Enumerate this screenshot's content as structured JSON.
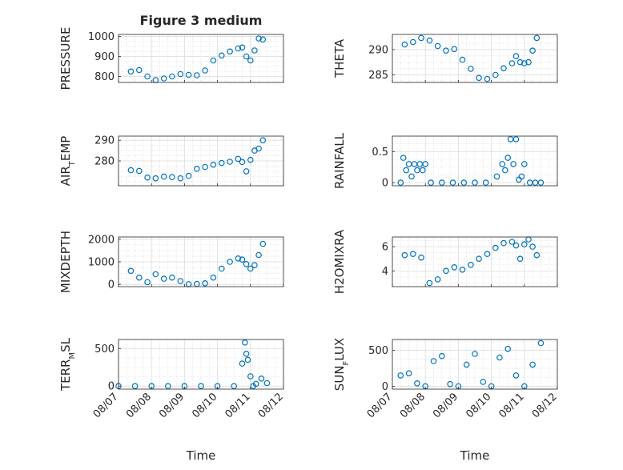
{
  "figure": {
    "title": "Figure 3 medium"
  },
  "chart_data": [
    {
      "type": "scatter",
      "ylabel": "PRESSURE",
      "xlabel": "",
      "ylim": [
        770,
        1010
      ],
      "yticks": [
        800,
        900,
        1000
      ],
      "grid": true,
      "x": [
        "08/07 09:00",
        "08/07 15:00",
        "08/07 21:00",
        "08/08 03:00",
        "08/08 09:00",
        "08/08 15:00",
        "08/08 21:00",
        "08/09 03:00",
        "08/09 09:00",
        "08/09 15:00",
        "08/09 21:00",
        "08/10 03:00",
        "08/10 09:00",
        "08/10 15:00",
        "08/10 18:00",
        "08/10 21:00",
        "08/11 00:00",
        "08/11 03:00",
        "08/11 06:00",
        "08/11 09:00"
      ],
      "y": [
        825,
        832,
        800,
        782,
        790,
        800,
        812,
        808,
        806,
        830,
        880,
        905,
        925,
        940,
        945,
        900,
        880,
        930,
        990,
        985
      ]
    },
    {
      "type": "scatter",
      "ylabel": "THETA",
      "xlabel": "",
      "ylim": [
        283.5,
        293
      ],
      "yticks": [
        285,
        290
      ],
      "grid": true,
      "x": [
        "08/07 09:00",
        "08/07 15:00",
        "08/07 21:00",
        "08/08 03:00",
        "08/08 09:00",
        "08/08 15:00",
        "08/08 21:00",
        "08/09 03:00",
        "08/09 09:00",
        "08/09 15:00",
        "08/09 21:00",
        "08/10 03:00",
        "08/10 09:00",
        "08/10 15:00",
        "08/10 18:00",
        "08/10 21:00",
        "08/11 00:00",
        "08/11 03:00",
        "08/11 06:00",
        "08/11 09:00"
      ],
      "y": [
        291,
        291.5,
        292.3,
        291.8,
        290.7,
        289.8,
        290.1,
        288.0,
        286.2,
        284.4,
        284.2,
        285.0,
        286.3,
        287.3,
        288.7,
        287.5,
        287.3,
        287.5,
        289.8,
        292.3
      ]
    },
    {
      "type": "scatter",
      "ylabel": "AIR_T_EMP",
      "xlabel": "",
      "ylim": [
        268,
        292
      ],
      "yticks": [
        280,
        290
      ],
      "grid": true,
      "x": [
        "08/07 09:00",
        "08/07 15:00",
        "08/07 21:00",
        "08/08 03:00",
        "08/08 09:00",
        "08/08 15:00",
        "08/08 21:00",
        "08/09 03:00",
        "08/09 09:00",
        "08/09 15:00",
        "08/09 21:00",
        "08/10 03:00",
        "08/10 09:00",
        "08/10 15:00",
        "08/10 18:00",
        "08/10 21:00",
        "08/11 00:00",
        "08/11 03:00",
        "08/11 06:00",
        "08/11 09:00"
      ],
      "y": [
        275.5,
        275.2,
        272,
        271.6,
        272.4,
        272.2,
        271.6,
        272.8,
        276.2,
        277.1,
        278.2,
        279.0,
        279.6,
        281.0,
        279.5,
        275.0,
        280.5,
        285.0,
        286.0,
        290.0
      ]
    },
    {
      "type": "scatter",
      "ylabel": "RAINFALL",
      "xlabel": "",
      "ylim": [
        -0.05,
        0.75
      ],
      "yticks": [
        0,
        0.5
      ],
      "grid": true,
      "x": [
        "08/07 06:00",
        "08/07 08:00",
        "08/07 10:00",
        "08/07 12:00",
        "08/07 14:00",
        "08/07 16:00",
        "08/07 18:00",
        "08/07 20:00",
        "08/07 22:00",
        "08/08 00:00",
        "08/08 04:00",
        "08/08 12:00",
        "08/08 20:00",
        "08/09 04:00",
        "08/09 12:00",
        "08/09 20:00",
        "08/10 04:00",
        "08/10 08:00",
        "08/10 10:00",
        "08/10 12:00",
        "08/10 14:00",
        "08/10 16:00",
        "08/10 18:00",
        "08/10 20:00",
        "08/10 22:00",
        "08/11 00:00",
        "08/11 04:00",
        "08/11 08:00",
        "08/11 12:00"
      ],
      "y": [
        0,
        0.4,
        0.2,
        0.3,
        0.1,
        0.3,
        0.2,
        0.3,
        0.2,
        0.3,
        0,
        0,
        0,
        0,
        0,
        0,
        0.1,
        0.3,
        0.2,
        0.4,
        0.7,
        0.3,
        0.7,
        0.05,
        0.1,
        0.3,
        0,
        0,
        0
      ]
    },
    {
      "type": "scatter",
      "ylabel": "MIXDEPTH",
      "xlabel": "",
      "ylim": [
        -100,
        2100
      ],
      "yticks": [
        0,
        1000,
        2000
      ],
      "grid": true,
      "x": [
        "08/07 09:00",
        "08/07 15:00",
        "08/07 21:00",
        "08/08 03:00",
        "08/08 09:00",
        "08/08 15:00",
        "08/08 21:00",
        "08/09 03:00",
        "08/09 09:00",
        "08/09 15:00",
        "08/09 21:00",
        "08/10 03:00",
        "08/10 09:00",
        "08/10 15:00",
        "08/10 18:00",
        "08/10 21:00",
        "08/11 00:00",
        "08/11 03:00",
        "08/11 06:00",
        "08/11 09:00"
      ],
      "y": [
        600,
        300,
        100,
        450,
        250,
        300,
        150,
        10,
        20,
        50,
        300,
        700,
        1000,
        1150,
        1100,
        900,
        700,
        850,
        1300,
        1800
      ]
    },
    {
      "type": "scatter",
      "ylabel": "H2OMIXRA",
      "xlabel": "",
      "ylim": [
        2.7,
        6.8
      ],
      "yticks": [
        4,
        6
      ],
      "grid": true,
      "x": [
        "08/07 09:00",
        "08/07 15:00",
        "08/07 21:00",
        "08/08 03:00",
        "08/08 09:00",
        "08/08 15:00",
        "08/08 21:00",
        "08/09 03:00",
        "08/09 09:00",
        "08/09 15:00",
        "08/09 21:00",
        "08/10 03:00",
        "08/10 09:00",
        "08/10 15:00",
        "08/10 18:00",
        "08/10 21:00",
        "08/11 00:00",
        "08/11 03:00",
        "08/11 06:00",
        "08/11 09:00"
      ],
      "y": [
        5.3,
        5.4,
        5.1,
        3.0,
        3.3,
        4.0,
        4.3,
        4.1,
        4.5,
        5.0,
        5.4,
        5.9,
        6.3,
        6.4,
        6.1,
        5.0,
        6.2,
        6.6,
        6.0,
        5.3
      ]
    },
    {
      "type": "scatter",
      "ylabel": "TERR_M_SL",
      "xlabel": "Time",
      "ylim": [
        -40,
        620
      ],
      "yticks": [
        0,
        500
      ],
      "grid": true,
      "x": [
        "08/07 00:00",
        "08/07 12:00",
        "08/08 00:00",
        "08/08 12:00",
        "08/09 00:00",
        "08/09 12:00",
        "08/10 00:00",
        "08/10 12:00",
        "08/10 18:00",
        "08/10 20:00",
        "08/10 21:00",
        "08/10 22:00",
        "08/11 00:00",
        "08/11 02:00",
        "08/11 04:00",
        "08/11 08:00",
        "08/11 12:00"
      ],
      "y": [
        0,
        0,
        0,
        0,
        0,
        0,
        0,
        0,
        300,
        580,
        430,
        350,
        130,
        0,
        30,
        100,
        40
      ],
      "xticks": [
        "08/07",
        "08/08",
        "08/09",
        "08/10",
        "08/11",
        "08/12"
      ]
    },
    {
      "type": "scatter",
      "ylabel": "SUN_F_LUX",
      "xlabel": "Time",
      "ylim": [
        -40,
        650
      ],
      "yticks": [
        0,
        500
      ],
      "grid": true,
      "x": [
        "08/07 06:00",
        "08/07 12:00",
        "08/07 18:00",
        "08/08 00:00",
        "08/08 06:00",
        "08/08 12:00",
        "08/08 18:00",
        "08/09 00:00",
        "08/09 06:00",
        "08/09 12:00",
        "08/09 18:00",
        "08/10 00:00",
        "08/10 06:00",
        "08/10 12:00",
        "08/10 18:00",
        "08/11 00:00",
        "08/11 06:00",
        "08/11 12:00"
      ],
      "y": [
        150,
        180,
        40,
        0,
        350,
        420,
        30,
        0,
        300,
        450,
        60,
        0,
        400,
        520,
        150,
        0,
        300,
        600
      ],
      "xticks": [
        "08/07",
        "08/08",
        "08/09",
        "08/10",
        "08/11",
        "08/12"
      ]
    }
  ]
}
